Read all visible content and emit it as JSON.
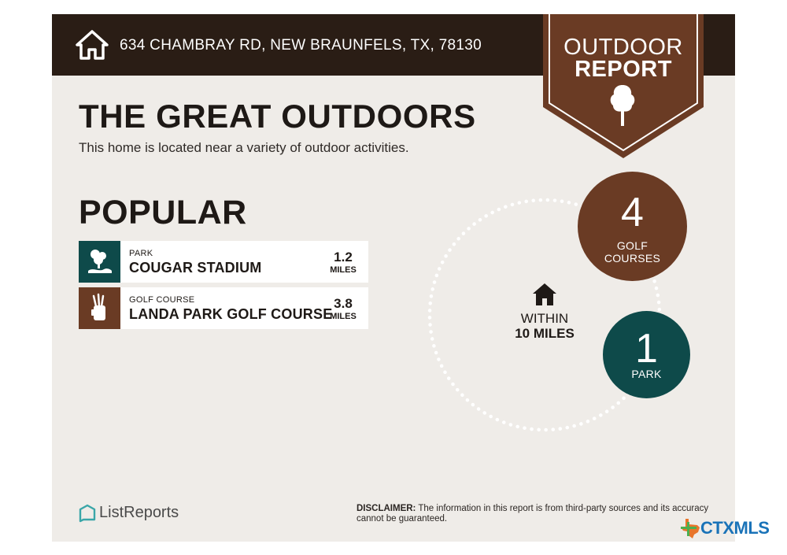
{
  "header": {
    "address": "634 CHAMBRAY RD, NEW BRAUNFELS, TX, 78130",
    "badge_line1": "OUTDOOR",
    "badge_line2": "REPORT"
  },
  "title": "THE GREAT OUTDOORS",
  "subtitle": "This home is located near a variety of outdoor activities.",
  "popular": {
    "heading": "POPULAR",
    "items": [
      {
        "category": "PARK",
        "name": "COUGAR STADIUM",
        "distance": "1.2",
        "unit": "MILES",
        "icon": "park-icon",
        "color": "#0e4a4a"
      },
      {
        "category": "GOLF COURSE",
        "name": "LANDA PARK GOLF COURSE",
        "distance": "3.8",
        "unit": "MILES",
        "icon": "golf-bag-icon",
        "color": "#6a3b24"
      }
    ]
  },
  "radius": {
    "line1": "WITHIN",
    "line2": "10 MILES"
  },
  "counts": [
    {
      "number": "4",
      "label_line1": "GOLF",
      "label_line2": "COURSES",
      "color": "#6a3b24"
    },
    {
      "number": "1",
      "label_line1": "PARK",
      "label_line2": "",
      "color": "#0e4a4a"
    }
  ],
  "footer": {
    "logo_text": "ListReports",
    "disclaimer_label": "DISCLAIMER:",
    "disclaimer_text": " The information in this report is from third-party sources and its accuracy cannot be guaranteed.",
    "mls_text": "CTXMLS"
  },
  "colors": {
    "header": "#2a1d15",
    "brown": "#6a3b24",
    "teal": "#0e4a4a",
    "background": "#efece8"
  }
}
